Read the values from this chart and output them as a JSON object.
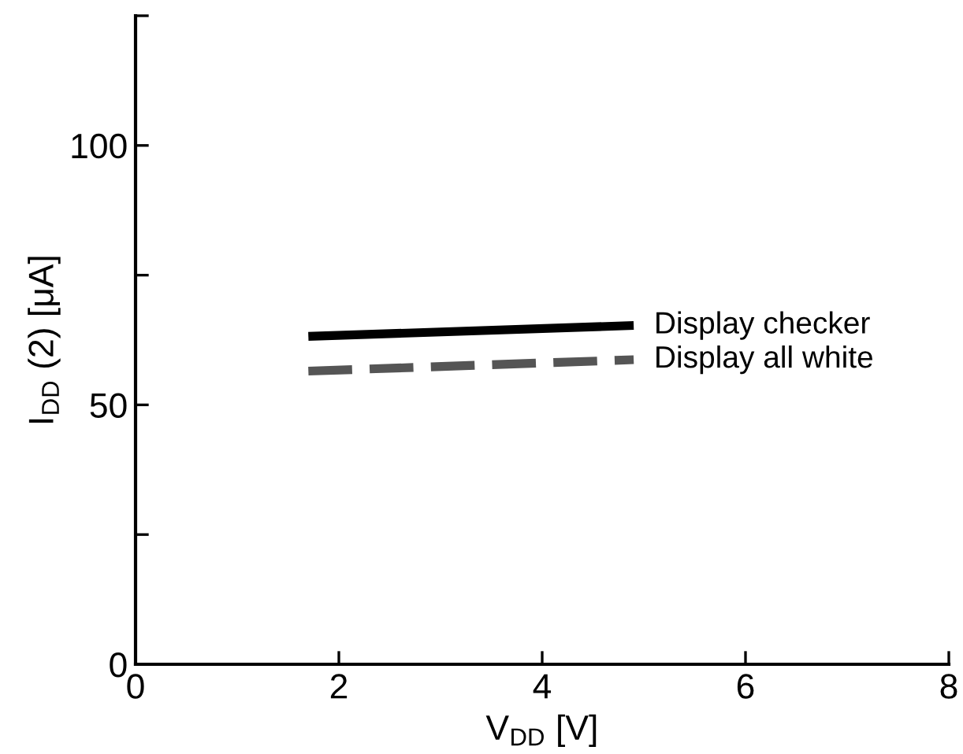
{
  "chart_data": {
    "type": "line",
    "xlabel": "V$_{DD}$ [V]",
    "ylabel": "I$_{DD}$ (2) [μA]",
    "xlim": [
      0,
      8
    ],
    "xticks": [
      0,
      2,
      4,
      6,
      8
    ],
    "ylim": [
      0,
      125
    ],
    "yticks": [
      0,
      {
        "value": 25,
        "label": null
      },
      50,
      {
        "value": 75,
        "label": null
      },
      100,
      {
        "value": 125,
        "label": null
      }
    ],
    "x": [
      1.7,
      4.9
    ],
    "grid": false,
    "legend": false,
    "marker": "none",
    "series": [
      {
        "name": "Display checker",
        "color": "#000000",
        "line_style": "solid",
        "values": [
          63.2,
          65.3
        ]
      },
      {
        "name": "Display all white",
        "color": "#555555",
        "line_style": "dashed",
        "values": [
          56.5,
          58.7
        ]
      }
    ]
  }
}
